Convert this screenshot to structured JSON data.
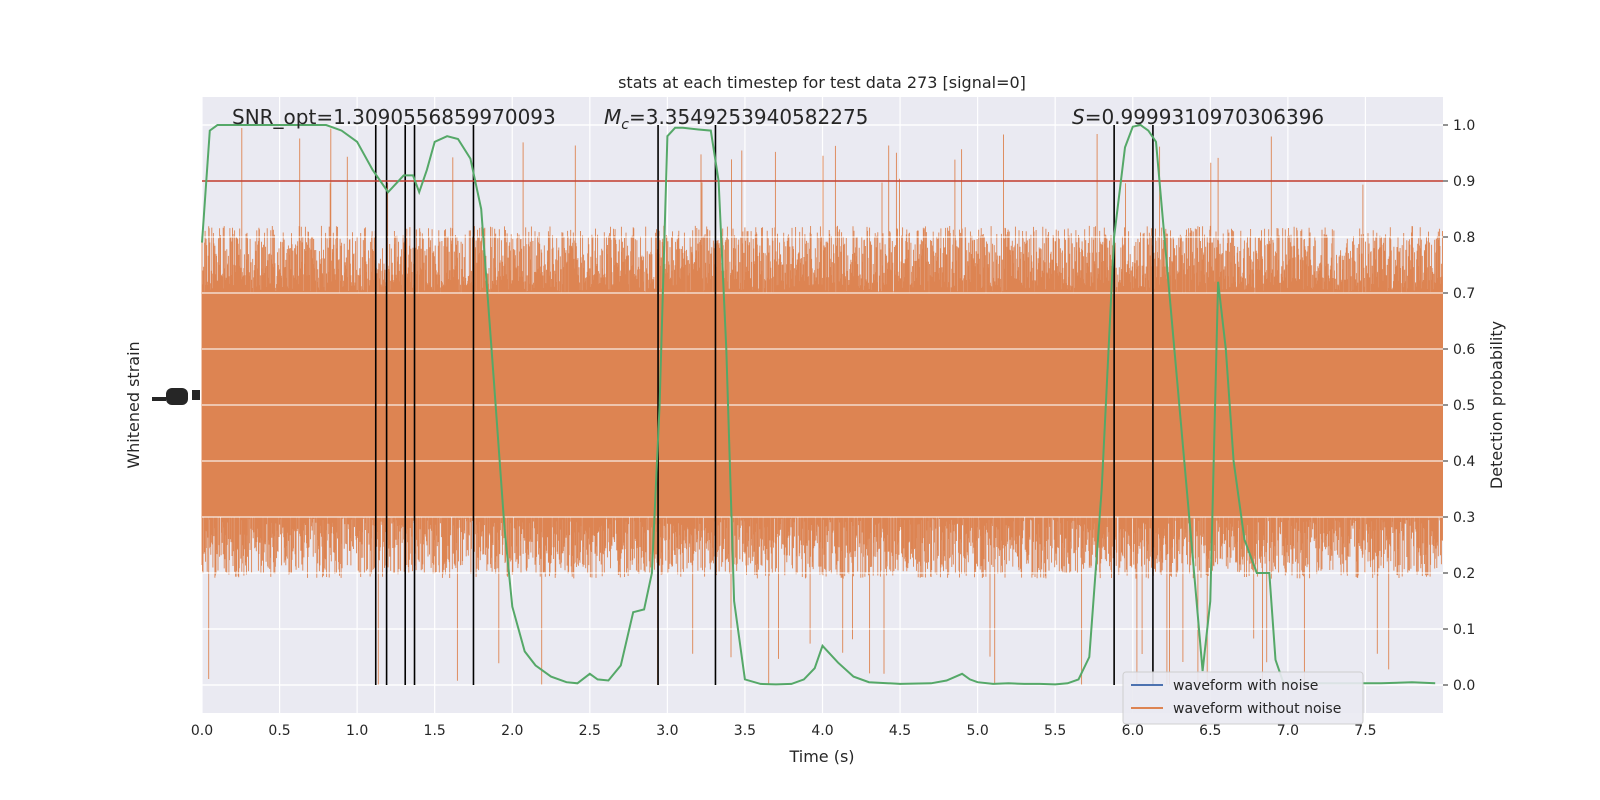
{
  "chart_data": {
    "type": "line",
    "title": "stats at each timestep for test data 273 [signal=0]",
    "xlabel": "Time (s)",
    "ylabel_left": "Whitened strain",
    "ylabel_right": "Detection probability",
    "xlim": [
      0,
      8
    ],
    "ylim_right": [
      -0.05,
      1.05
    ],
    "x_ticks": [
      "0.0",
      "0.5",
      "1.0",
      "1.5",
      "2.0",
      "2.5",
      "3.0",
      "3.5",
      "4.0",
      "4.5",
      "5.0",
      "5.5",
      "6.0",
      "6.5",
      "7.0",
      "7.5"
    ],
    "x_tick_values": [
      0,
      0.5,
      1,
      1.5,
      2,
      2.5,
      3,
      3.5,
      4,
      4.5,
      5,
      5.5,
      6,
      6.5,
      7,
      7.5
    ],
    "y_right_ticks": [
      "0.0",
      "0.1",
      "0.2",
      "0.3",
      "0.4",
      "0.5",
      "0.6",
      "0.7",
      "0.8",
      "0.9",
      "1.0"
    ],
    "y_right_tick_values": [
      0,
      0.1,
      0.2,
      0.3,
      0.4,
      0.5,
      0.6,
      0.7,
      0.8,
      0.9,
      1.0
    ],
    "grid": true,
    "legend_position": "bottom-right",
    "annotations": {
      "snr": "SNR_opt=1.3090556859970093",
      "mc_symbol": "M",
      "mc_sub": "c",
      "mc_value": "=3.3549253940582275",
      "s_symbol": "S",
      "s_value": "=0.9999310970306396"
    },
    "threshold": 0.9,
    "vertical_lines": [
      1.12,
      1.19,
      1.31,
      1.37,
      1.75,
      2.94,
      3.31,
      5.88,
      6.13
    ],
    "series": [
      {
        "name": "waveform with noise",
        "color": "#4c72b0",
        "note": "noise trace, hidden behind orange trace"
      },
      {
        "name": "waveform without noise",
        "color": "#dd8452",
        "amplitude_band": [
          0.25,
          0.76
        ]
      },
      {
        "color": "#55a868",
        "x": [
          0.0,
          0.05,
          0.1,
          0.2,
          0.3,
          0.4,
          0.5,
          0.6,
          0.7,
          0.8,
          0.9,
          1.0,
          1.1,
          1.2,
          1.3,
          1.36,
          1.4,
          1.45,
          1.5,
          1.58,
          1.65,
          1.73,
          1.8,
          1.88,
          1.95,
          2.0,
          2.08,
          2.15,
          2.25,
          2.35,
          2.42,
          2.5,
          2.55,
          2.62,
          2.7,
          2.78,
          2.85,
          2.9,
          2.95,
          3.0,
          3.05,
          3.1,
          3.2,
          3.28,
          3.33,
          3.38,
          3.43,
          3.5,
          3.6,
          3.7,
          3.8,
          3.88,
          3.95,
          4.0,
          4.1,
          4.2,
          4.3,
          4.5,
          4.7,
          4.8,
          4.9,
          4.95,
          5.0,
          5.1,
          5.2,
          5.3,
          5.4,
          5.5,
          5.58,
          5.65,
          5.72,
          5.8,
          5.88,
          5.95,
          6.0,
          6.05,
          6.1,
          6.15,
          6.22,
          6.3,
          6.38,
          6.45,
          6.5,
          6.55,
          6.6,
          6.65,
          6.72,
          6.8,
          6.88,
          6.92,
          6.97,
          7.05,
          7.2,
          7.4,
          7.6,
          7.8,
          7.95
        ],
        "values": [
          0.79,
          0.99,
          1.0,
          1.0,
          1.0,
          1.0,
          1.0,
          1.0,
          1.0,
          1.0,
          0.99,
          0.97,
          0.92,
          0.88,
          0.91,
          0.91,
          0.88,
          0.92,
          0.97,
          0.98,
          0.975,
          0.94,
          0.85,
          0.55,
          0.28,
          0.14,
          0.06,
          0.035,
          0.015,
          0.005,
          0.003,
          0.02,
          0.01,
          0.008,
          0.035,
          0.13,
          0.135,
          0.2,
          0.5,
          0.98,
          0.995,
          0.995,
          0.992,
          0.99,
          0.9,
          0.6,
          0.15,
          0.01,
          0.002,
          0.001,
          0.002,
          0.01,
          0.03,
          0.07,
          0.04,
          0.015,
          0.005,
          0.002,
          0.003,
          0.008,
          0.02,
          0.01,
          0.005,
          0.002,
          0.003,
          0.002,
          0.002,
          0.001,
          0.003,
          0.01,
          0.05,
          0.35,
          0.8,
          0.96,
          0.997,
          1.0,
          0.99,
          0.97,
          0.75,
          0.5,
          0.25,
          0.025,
          0.15,
          0.72,
          0.6,
          0.4,
          0.26,
          0.2,
          0.2,
          0.045,
          0.005,
          0.004,
          0.003,
          0.003,
          0.003,
          0.005,
          0.003
        ]
      }
    ]
  }
}
